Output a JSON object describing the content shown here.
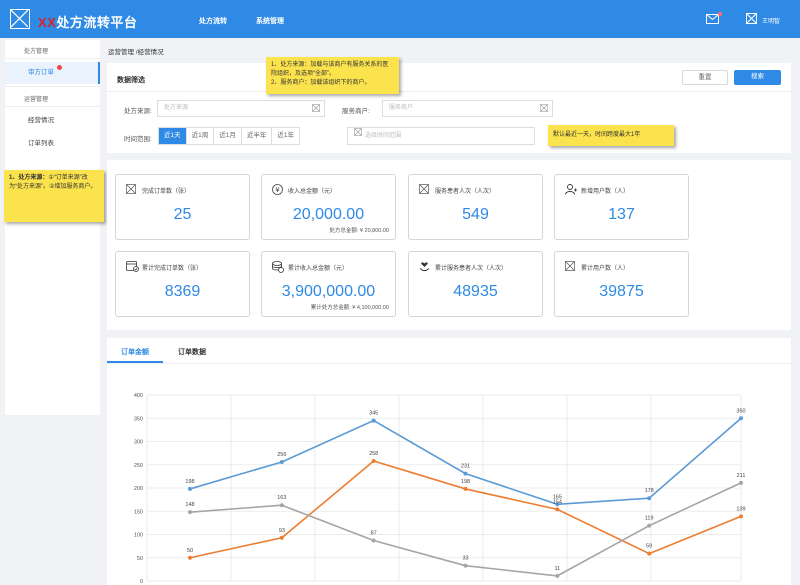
{
  "header": {
    "title_redacted": "XX",
    "title": "处方流转平台",
    "nav": [
      "处方流转",
      "系统管理"
    ],
    "user_name": "王明智"
  },
  "sidebar": {
    "groups": [
      {
        "label": "处方管理",
        "items": [
          {
            "label": "审方订单",
            "active": true,
            "badge": true
          }
        ]
      },
      {
        "label": "运营管理",
        "items": [
          {
            "label": "经营情况",
            "active": false
          },
          {
            "label": "订单列表",
            "active": false
          }
        ]
      }
    ]
  },
  "breadcrumb": "运营管理 /经营情况",
  "filter": {
    "title": "数据筛选",
    "reset_label": "重置",
    "search_label": "搜索",
    "source_label": "处方来源:",
    "source_placeholder": "处方来源",
    "merchant_label": "服务商户:",
    "merchant_placeholder": "服务商户",
    "time_label": "时间范围:",
    "time_options": [
      "近1天",
      "近1周",
      "近1月",
      "近半年",
      "近1年"
    ],
    "time_selected": "近1天",
    "time_placeholder": "选择时间范围"
  },
  "notes": {
    "top": [
      "1、处方来源：加载与该商户有服务关系的医院组织，及选项“全部”。",
      "2、服务商户：加载该组织下的商户。"
    ],
    "right": "默认最近一天，时间跨度最大1年",
    "left_title": "1、处方来源：",
    "left_body": "①“订单来源”改为“处方来源”。②增加服务商户。"
  },
  "stats": [
    {
      "icon": "order-icon",
      "label": "完成订单数（张）",
      "value": "25",
      "sub": ""
    },
    {
      "icon": "yen-icon",
      "label": "收入总金额（元）",
      "value": "20,000.00",
      "sub": "处方总金额: ¥ 20,800.00"
    },
    {
      "icon": "patient-icon",
      "label": "服务患者人次（人次）",
      "value": "549",
      "sub": ""
    },
    {
      "icon": "user-add-icon",
      "label": "新增用户数（人）",
      "value": "137",
      "sub": ""
    },
    {
      "icon": "order-done-icon",
      "label": "累计完成订单数（张）",
      "value": "8369",
      "sub": ""
    },
    {
      "icon": "coins-icon",
      "label": "累计收入总金额（元）",
      "value": "3,900,000.00",
      "sub": "累计处方总金额: ¥ 4,100,000.00"
    },
    {
      "icon": "heart-hand-icon",
      "label": "累计服务患者人次（人次）",
      "value": "48935",
      "sub": ""
    },
    {
      "icon": "users-icon",
      "label": "累计用户数（人）",
      "value": "39875",
      "sub": ""
    }
  ],
  "tabs": [
    {
      "label": "订单金额",
      "active": true
    },
    {
      "label": "订单数据",
      "active": false
    }
  ],
  "chart_data": {
    "type": "line",
    "y_ticks": [
      "0",
      "50",
      "100",
      "150",
      "200",
      "250",
      "300",
      "350",
      "400"
    ],
    "ylim": [
      0,
      400
    ],
    "grid": true,
    "colors": [
      "#5b9bd5",
      "#ed7d31",
      "#a5a5a5"
    ],
    "series": [
      {
        "values": [
          198,
          256,
          345,
          231,
          165,
          178,
          350
        ]
      },
      {
        "values": [
          50,
          93,
          258,
          198,
          154,
          59,
          139
        ]
      },
      {
        "values": [
          148,
          163,
          87,
          33,
          11,
          119,
          211
        ]
      }
    ]
  }
}
